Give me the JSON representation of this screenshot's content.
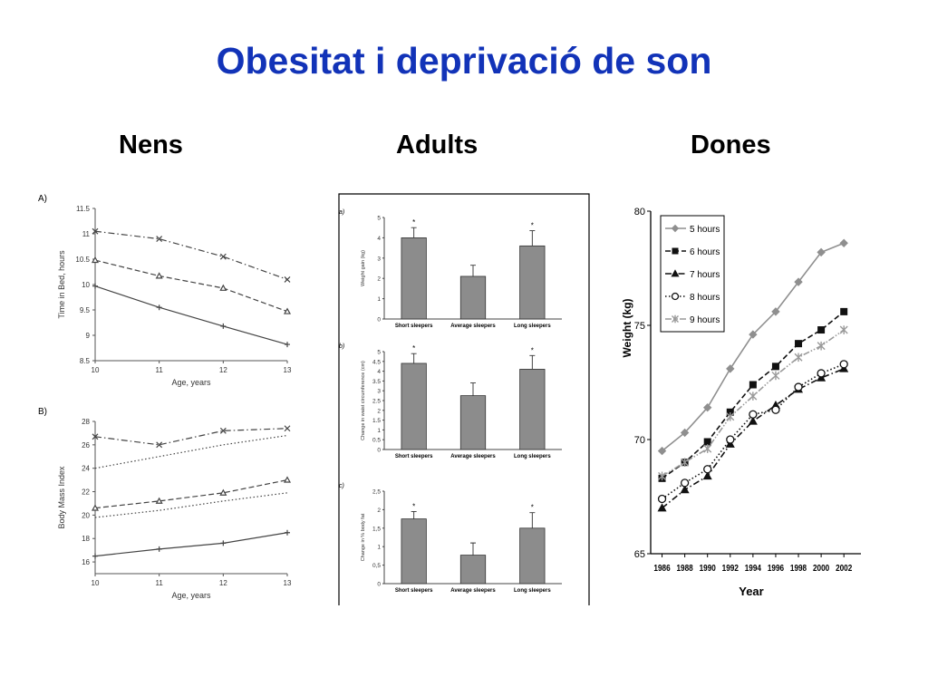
{
  "slide": {
    "title": "Obesitat i deprivació de son",
    "columns": [
      "Nens",
      "Adults",
      "Dones"
    ]
  },
  "colors": {
    "title": "#1233b8",
    "bars": "#8c8c8c"
  },
  "chart_data": [
    {
      "id": "kids-A",
      "type": "line",
      "panel_label": "A)",
      "xlabel": "Age, years",
      "ylabel": "Time in Bed, hours",
      "x": [
        10,
        11,
        12,
        13
      ],
      "ylim": [
        8.5,
        11.5
      ],
      "yticks": [
        "8.5",
        "9",
        "9.5",
        "10",
        "10.5",
        "11",
        "11.5"
      ],
      "series": [
        {
          "style": "dashdot",
          "marker": "x",
          "values": [
            11.05,
            10.9,
            10.55,
            10.1
          ]
        },
        {
          "style": "dashed",
          "marker": "triangle",
          "values": [
            10.48,
            10.17,
            9.93,
            9.47
          ]
        },
        {
          "style": "solid",
          "marker": "plus",
          "values": [
            9.97,
            9.55,
            9.18,
            8.82
          ]
        }
      ]
    },
    {
      "id": "kids-B",
      "type": "line",
      "panel_label": "B)",
      "xlabel": "Age, years",
      "ylabel": "Body Mass Index",
      "x": [
        10,
        11,
        12,
        13
      ],
      "ylim": [
        15,
        28
      ],
      "yticks": [
        "16",
        "18",
        "20",
        "22",
        "24",
        "26",
        "28"
      ],
      "series": [
        {
          "style": "dashdot",
          "marker": "x",
          "values": [
            26.7,
            26.0,
            27.2,
            27.4
          ]
        },
        {
          "style": "dotted",
          "marker": "none",
          "values": [
            24.0,
            25.0,
            26.0,
            26.8
          ]
        },
        {
          "style": "dashed",
          "marker": "triangle",
          "values": [
            20.6,
            21.2,
            21.9,
            23.0
          ]
        },
        {
          "style": "dotted",
          "marker": "none",
          "values": [
            19.8,
            20.4,
            21.2,
            21.9
          ]
        },
        {
          "style": "solid",
          "marker": "plus",
          "values": [
            16.5,
            17.1,
            17.6,
            18.5
          ]
        }
      ]
    },
    {
      "id": "adults-a",
      "type": "bar",
      "panel_label": "a)",
      "ylabel": "Weight gain (kg)",
      "categories": [
        "Short sleepers",
        "Average sleepers",
        "Long sleepers"
      ],
      "values": [
        4.0,
        2.1,
        3.6
      ],
      "errors": [
        0.5,
        0.55,
        0.75
      ],
      "significant": [
        "*",
        "",
        "*"
      ],
      "ylim": [
        0,
        5
      ],
      "yticks": [
        "0",
        "1",
        "2",
        "3",
        "4",
        "5"
      ]
    },
    {
      "id": "adults-b",
      "type": "bar",
      "panel_label": "b)",
      "ylabel": "Change in waist circumference (cm)",
      "categories": [
        "Short sleepers",
        "Average sleepers",
        "Long sleepers"
      ],
      "values": [
        4.4,
        2.75,
        4.1
      ],
      "errors": [
        0.5,
        0.65,
        0.7
      ],
      "significant": [
        "*",
        "",
        "*"
      ],
      "ylim": [
        0,
        5
      ],
      "yticks": [
        "0",
        "0.5",
        "1",
        "1.5",
        "2",
        "2.5",
        "3",
        "3.5",
        "4",
        "4.5",
        "5"
      ]
    },
    {
      "id": "adults-c",
      "type": "bar",
      "panel_label": "c)",
      "ylabel": "Change in % body fat",
      "categories": [
        "Short sleepers",
        "Average sleepers",
        "Long sleepers"
      ],
      "values": [
        1.75,
        0.77,
        1.5
      ],
      "errors": [
        0.2,
        0.33,
        0.42
      ],
      "significant": [
        "*",
        "",
        "*"
      ],
      "ylim": [
        0,
        2.5
      ],
      "yticks": [
        "0",
        "0,5",
        "1",
        "1,5",
        "2",
        "2,5"
      ]
    },
    {
      "id": "women",
      "type": "line",
      "xlabel": "Year",
      "ylabel": "Weight (kg)",
      "x": [
        1986,
        1988,
        1990,
        1992,
        1994,
        1996,
        1998,
        2000,
        2002
      ],
      "xlim": [
        1985,
        2003.5
      ],
      "ylim": [
        65,
        80
      ],
      "yticks": [
        "65",
        "70",
        "75",
        "80"
      ],
      "xticks": [
        "1986",
        "1988",
        "1990",
        "1992",
        "1994",
        "1996",
        "1998",
        "2000",
        "2002"
      ],
      "legend": "top-left",
      "series": [
        {
          "name": "5 hours",
          "style": "solid",
          "marker": "diamond",
          "color": "#8f8f8f",
          "values": [
            69.5,
            70.3,
            71.4,
            73.1,
            74.6,
            75.6,
            76.9,
            78.2,
            78.6
          ]
        },
        {
          "name": "6 hours",
          "style": "dashed",
          "marker": "square",
          "color": "#111111",
          "values": [
            68.3,
            69.0,
            69.9,
            71.2,
            72.4,
            73.2,
            74.2,
            74.8,
            75.6
          ]
        },
        {
          "name": "7 hours",
          "style": "dashdot",
          "marker": "triangle",
          "color": "#111111",
          "values": [
            67.0,
            67.8,
            68.4,
            69.8,
            70.8,
            71.5,
            72.2,
            72.7,
            73.1
          ]
        },
        {
          "name": "8 hours",
          "style": "dotted",
          "marker": "circle",
          "color": "#111111",
          "values": [
            67.4,
            68.1,
            68.7,
            70.0,
            71.1,
            71.3,
            72.3,
            72.9,
            73.3
          ]
        },
        {
          "name": "9 hours",
          "style": "dashdotdot",
          "marker": "asterisk",
          "color": "#9a9a9a",
          "values": [
            68.4,
            69.0,
            69.6,
            71.0,
            71.9,
            72.8,
            73.6,
            74.1,
            74.8
          ]
        }
      ]
    }
  ]
}
